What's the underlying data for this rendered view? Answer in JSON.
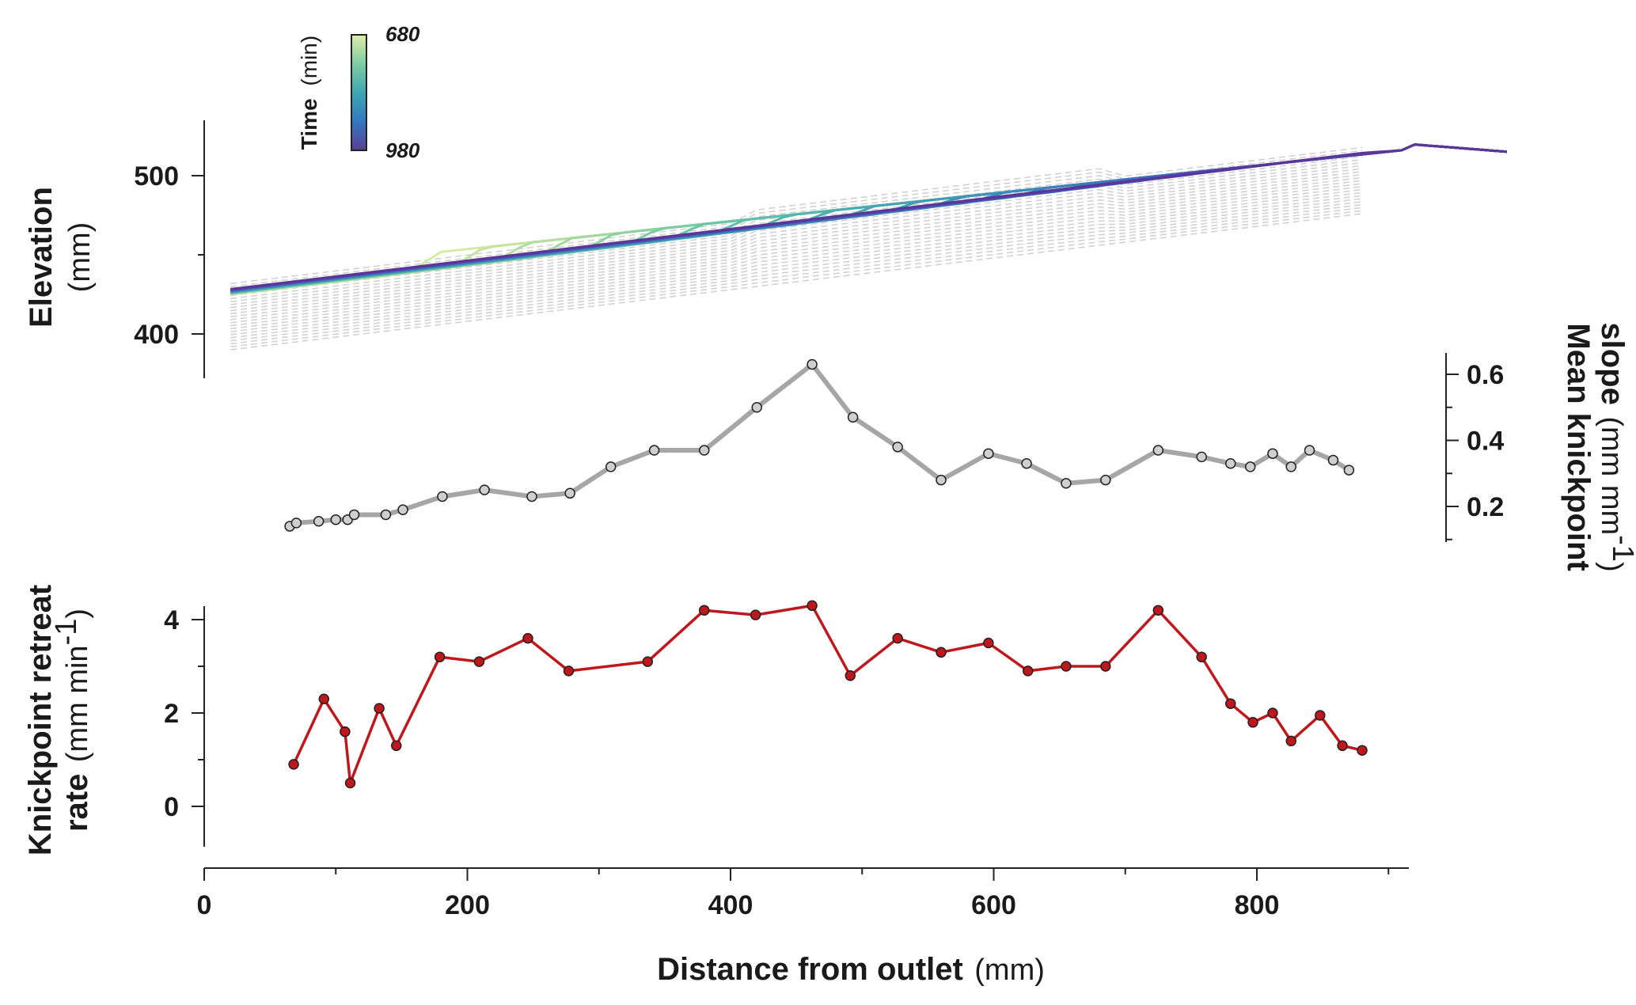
{
  "chart_data": [
    {
      "panel": "top",
      "type": "line",
      "ylabel_bold": "Elevation",
      "ylabel_unit": "(mm)",
      "yticks": [
        400,
        500
      ],
      "ylim": [
        370,
        533
      ],
      "xlim": [
        -3,
        932
      ],
      "colorbar": {
        "title_bold": "Time",
        "title_unit": "(min)",
        "top_label": "680",
        "bottom_label": "980",
        "colors": [
          "#ddeeaa",
          "#7fcca3",
          "#3fa6b2",
          "#3478bf",
          "#5b3d96"
        ]
      },
      "background_profiles_color": "#cfcfcf",
      "profile_count": 23,
      "profile_colors": [
        "#d6eaa4",
        "#c5e49f",
        "#b3de9e",
        "#a0d89f",
        "#8cd2a1",
        "#79cca4",
        "#6ac5a8",
        "#5ebdac",
        "#54b5ae",
        "#4cadb1",
        "#46a4b3",
        "#419bb5",
        "#3e92b7",
        "#3d89b9",
        "#3d80bb",
        "#3e77bd",
        "#406ebe",
        "#4465bd",
        "#495cb9",
        "#4e53b3",
        "#5249ab",
        "#563fa2",
        "#593697"
      ],
      "knickpoint_x": [
        65,
        70,
        90,
        105,
        113,
        133,
        148,
        182,
        213,
        250,
        278,
        308,
        340,
        380,
        420,
        462,
        493,
        527,
        560,
        596,
        625,
        655,
        685,
        725,
        758,
        780,
        795,
        812,
        826,
        840,
        858,
        870,
        880
      ],
      "downstream_elev": [
        431,
        432,
        436,
        439,
        441,
        444,
        446,
        452,
        457,
        463,
        467,
        472,
        476,
        482,
        487,
        493,
        497,
        500,
        504,
        508,
        511,
        513,
        515,
        518,
        519,
        520,
        521,
        521,
        521,
        522,
        522,
        523,
        523
      ],
      "final_profile": {
        "x": [
          20,
          200,
          400,
          600,
          700,
          800,
          900,
          990
        ],
        "elevation": [
          425,
          440,
          458,
          482,
          493,
          505,
          515,
          515
        ]
      }
    },
    {
      "panel": "middle",
      "type": "line",
      "ylabel_bold": "Mean knickpoint",
      "ylabel_rest": "slope",
      "ylabel_unit": "(mm mm",
      "ylabel_unit_sup": "-1",
      "ylabel_unit_close": ")",
      "yticks": [
        "0.2",
        "0.4",
        "0.6"
      ],
      "ylim": [
        0.08,
        0.68
      ],
      "line_color": "#a6a6a6",
      "x": [
        65,
        70,
        87,
        100,
        109,
        114,
        138,
        151,
        181,
        213,
        249,
        278,
        309,
        342,
        380,
        420,
        462,
        493,
        527,
        560,
        596,
        625,
        655,
        685,
        725,
        758,
        780,
        795,
        812,
        826,
        840,
        858,
        870
      ],
      "values": [
        0.14,
        0.15,
        0.155,
        0.16,
        0.16,
        0.175,
        0.175,
        0.19,
        0.23,
        0.25,
        0.23,
        0.24,
        0.32,
        0.37,
        0.37,
        0.5,
        0.63,
        0.47,
        0.38,
        0.28,
        0.36,
        0.33,
        0.27,
        0.28,
        0.37,
        0.35,
        0.33,
        0.32,
        0.36,
        0.32,
        0.37,
        0.34,
        0.31
      ]
    },
    {
      "panel": "bottom",
      "type": "line",
      "ylabel_bold_1": "Knickpoint retreat",
      "ylabel_bold_2": "rate",
      "ylabel_unit": "(mm min",
      "ylabel_unit_sup": "-1",
      "ylabel_unit_close": ")",
      "yticks": [
        "0",
        "2",
        "4"
      ],
      "ylim": [
        -0.8,
        4.35
      ],
      "line_color": "#c0171d",
      "xlabel_bold": "Distance from outlet",
      "xlabel_unit": "(mm)",
      "xticks": [
        "0",
        "200",
        "400",
        "600",
        "800"
      ],
      "xlim": [
        -3,
        932
      ],
      "x": [
        68,
        91,
        107,
        111,
        133,
        146,
        179,
        209,
        246,
        277,
        337,
        380,
        419,
        462,
        491,
        527,
        560,
        596,
        626,
        655,
        685,
        725,
        758,
        780,
        797,
        812,
        826,
        848,
        865,
        880
      ],
      "values": [
        0.9,
        2.3,
        1.6,
        0.5,
        2.1,
        1.3,
        3.2,
        3.1,
        3.6,
        2.9,
        3.1,
        4.2,
        4.1,
        4.3,
        2.8,
        3.6,
        3.3,
        3.5,
        2.9,
        3.0,
        3.0,
        4.2,
        3.2,
        2.2,
        1.8,
        2.0,
        1.4,
        1.95,
        1.3,
        1.2
      ]
    }
  ]
}
